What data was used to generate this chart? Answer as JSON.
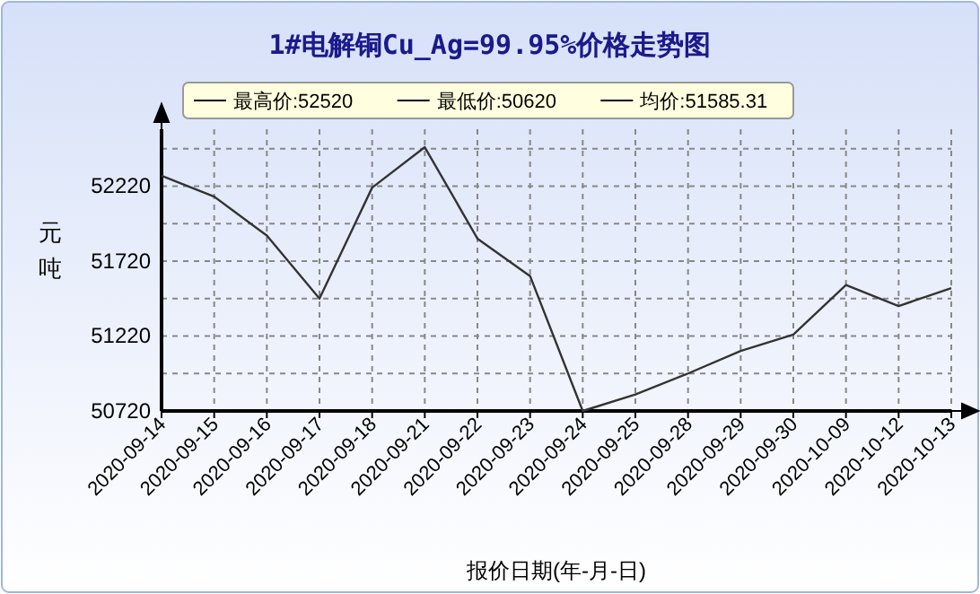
{
  "chart_data": {
    "type": "line",
    "title": "1#电解铜Cu_Ag=99.95%价格走势图",
    "xlabel": "报价日期(年-月-日)",
    "ylabel": "元吨",
    "annotations": [
      "最高价:52520",
      "最低价:50620",
      "均价:51585.31"
    ],
    "categories": [
      "2020-09-14",
      "2020-09-15",
      "2020-09-16",
      "2020-09-17",
      "2020-09-18",
      "2020-09-21",
      "2020-09-22",
      "2020-09-23",
      "2020-09-24",
      "2020-09-25",
      "2020-09-28",
      "2020-09-29",
      "2020-09-30",
      "2020-10-09",
      "2020-10-12",
      "2020-10-13"
    ],
    "series": [
      {
        "color": "#333333",
        "values": [
          52290,
          52150,
          51890,
          51470,
          52210,
          52480,
          51870,
          51620,
          50720,
          50830,
          50970,
          51120,
          51230,
          51560,
          51420,
          51540
        ]
      }
    ],
    "ylim": [
      50720,
      52600
    ],
    "yticks": [
      50720,
      {
        "value": 50970,
        "label": null
      },
      51220,
      {
        "value": 51470,
        "label": null
      },
      51720,
      {
        "value": 51970,
        "label": null
      },
      52220,
      {
        "value": 52470,
        "label": null
      }
    ],
    "grid": true,
    "marker": "none",
    "line_style": "solid"
  }
}
